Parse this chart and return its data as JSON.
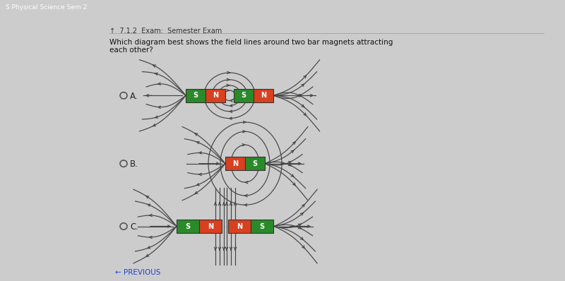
{
  "bg_color": "#cccccc",
  "header_bg": "#1e2a4a",
  "header_text": "S Physical Science Sem 2",
  "exam_text": "7.1.2  Exam:  Semester Exam",
  "question": [
    "Which diagram best shows the field lines around two bar magnets attracting",
    "each other?"
  ],
  "magnet_green": "#2a8a2a",
  "magnet_orange": "#d94020",
  "line_color": "#444444",
  "prev_text": "← PREVIOUS",
  "options": [
    "A.",
    "B.",
    "C."
  ],
  "title_fontsize": 8,
  "fig_w": 8.0,
  "fig_h": 3.98,
  "dpi": 100
}
